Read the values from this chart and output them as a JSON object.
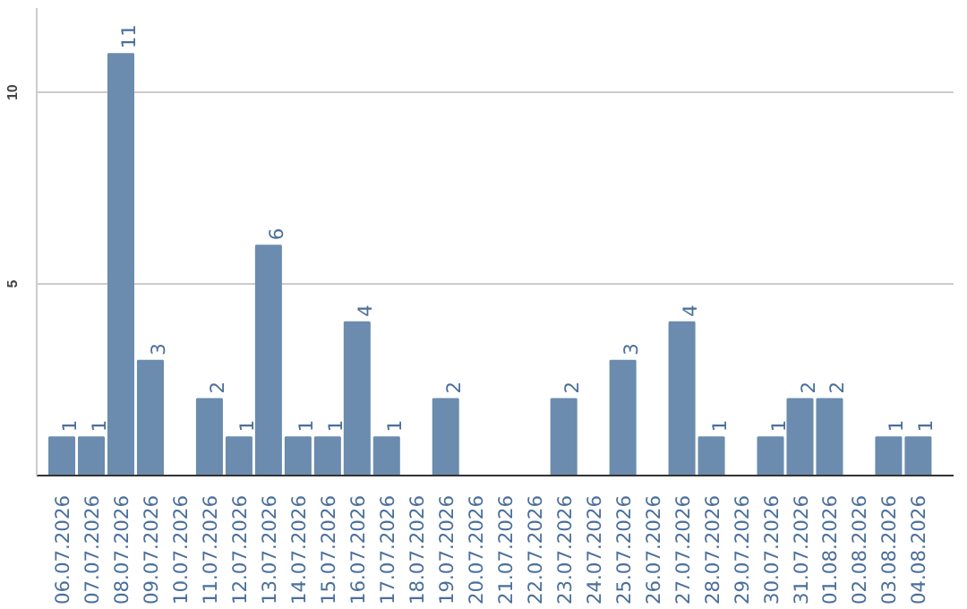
{
  "chart_data": {
    "type": "bar",
    "categories": [
      "06.07.2026",
      "07.07.2026",
      "08.07.2026",
      "09.07.2026",
      "10.07.2026",
      "11.07.2026",
      "12.07.2026",
      "13.07.2026",
      "14.07.2026",
      "15.07.2026",
      "16.07.2026",
      "17.07.2026",
      "18.07.2026",
      "19.07.2026",
      "20.07.2026",
      "21.07.2026",
      "22.07.2026",
      "23.07.2026",
      "24.07.2026",
      "25.07.2026",
      "26.07.2026",
      "27.07.2026",
      "28.07.2026",
      "29.07.2026",
      "30.07.2026",
      "31.07.2026",
      "01.08.2026",
      "02.08.2026",
      "03.08.2026",
      "04.08.2026"
    ],
    "values": [
      1,
      1,
      11,
      3,
      0,
      2,
      1,
      6,
      1,
      1,
      4,
      1,
      0,
      2,
      0,
      0,
      0,
      2,
      0,
      3,
      0,
      4,
      1,
      0,
      1,
      2,
      2,
      0,
      1,
      1
    ],
    "value_labels": [
      "1",
      "1",
      "11",
      "3",
      null,
      "2",
      "1",
      "6",
      "1",
      "1",
      "4",
      "1",
      null,
      "2",
      null,
      null,
      null,
      "2",
      null,
      "3",
      null,
      "4",
      "1",
      null,
      "1",
      "2",
      "2",
      null,
      "1",
      "1"
    ],
    "color": "#6b8cae",
    "ylim": [
      0,
      12.2
    ],
    "yticks": [
      5,
      10
    ],
    "grid": "y"
  }
}
